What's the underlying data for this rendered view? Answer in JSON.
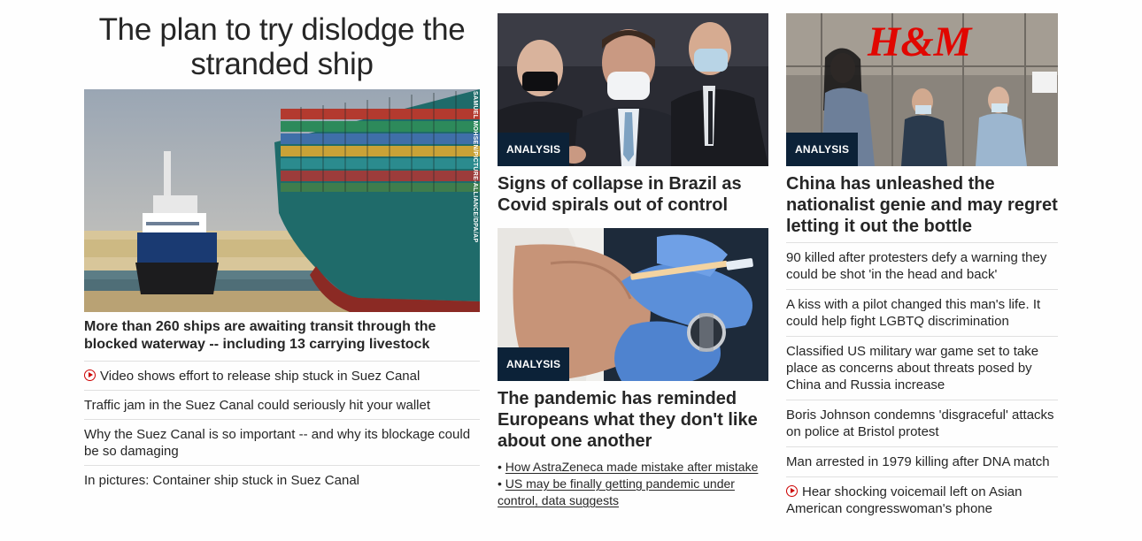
{
  "left": {
    "section_title": "The plan to try dislodge the stranded ship",
    "image_credit": "SAMUEL MOHSEN/PICTURE-ALLIANCE/DPA/AP",
    "headline": "More than 260 ships are awaiting transit through the blocked waterway -- including 13 carrying livestock",
    "links": [
      {
        "text": "Video shows effort to release ship stuck in Suez Canal",
        "icon": "play-icon"
      },
      {
        "text": "Traffic jam in the Suez Canal could seriously hit your wallet"
      },
      {
        "text": "Why the Suez Canal is so important -- and why its blockage could be so damaging"
      },
      {
        "text": "In pictures: Container ship stuck in Suez Canal"
      }
    ]
  },
  "middle": {
    "story1": {
      "badge": "ANALYSIS",
      "headline": "Signs of collapse in Brazil as Covid spirals out of control"
    },
    "story2": {
      "badge": "ANALYSIS",
      "headline": "The pandemic has reminded Europeans what they don't like about one another",
      "sublinks": [
        "How AstraZeneca made mistake after mistake",
        "US may be finally getting pandemic under control, data suggests"
      ]
    }
  },
  "right": {
    "story": {
      "badge": "ANALYSIS",
      "headline": "China has unleashed the nationalist genie and may regret letting it out the bottle",
      "store_sign": "H&M"
    },
    "links": [
      {
        "text": "90 killed after protesters defy a warning they could be shot 'in the head and back'"
      },
      {
        "text": "A kiss with a pilot changed this man's life. It could help fight LGBTQ discrimination"
      },
      {
        "text": "Classified US military war game set to take place as concerns about threats posed by China and Russia increase"
      },
      {
        "text": "Boris Johnson condemns 'disgraceful' attacks on police at Bristol protest"
      },
      {
        "text": "Man arrested in 1979 killing after DNA match"
      },
      {
        "text": "Hear shocking voicemail left on Asian American congresswoman's phone",
        "icon": "play-icon"
      }
    ]
  },
  "colors": {
    "badge_bg": "#0c2238",
    "play_icon": "#cc0000",
    "text": "#262626",
    "divider": "#e0e0e0"
  }
}
